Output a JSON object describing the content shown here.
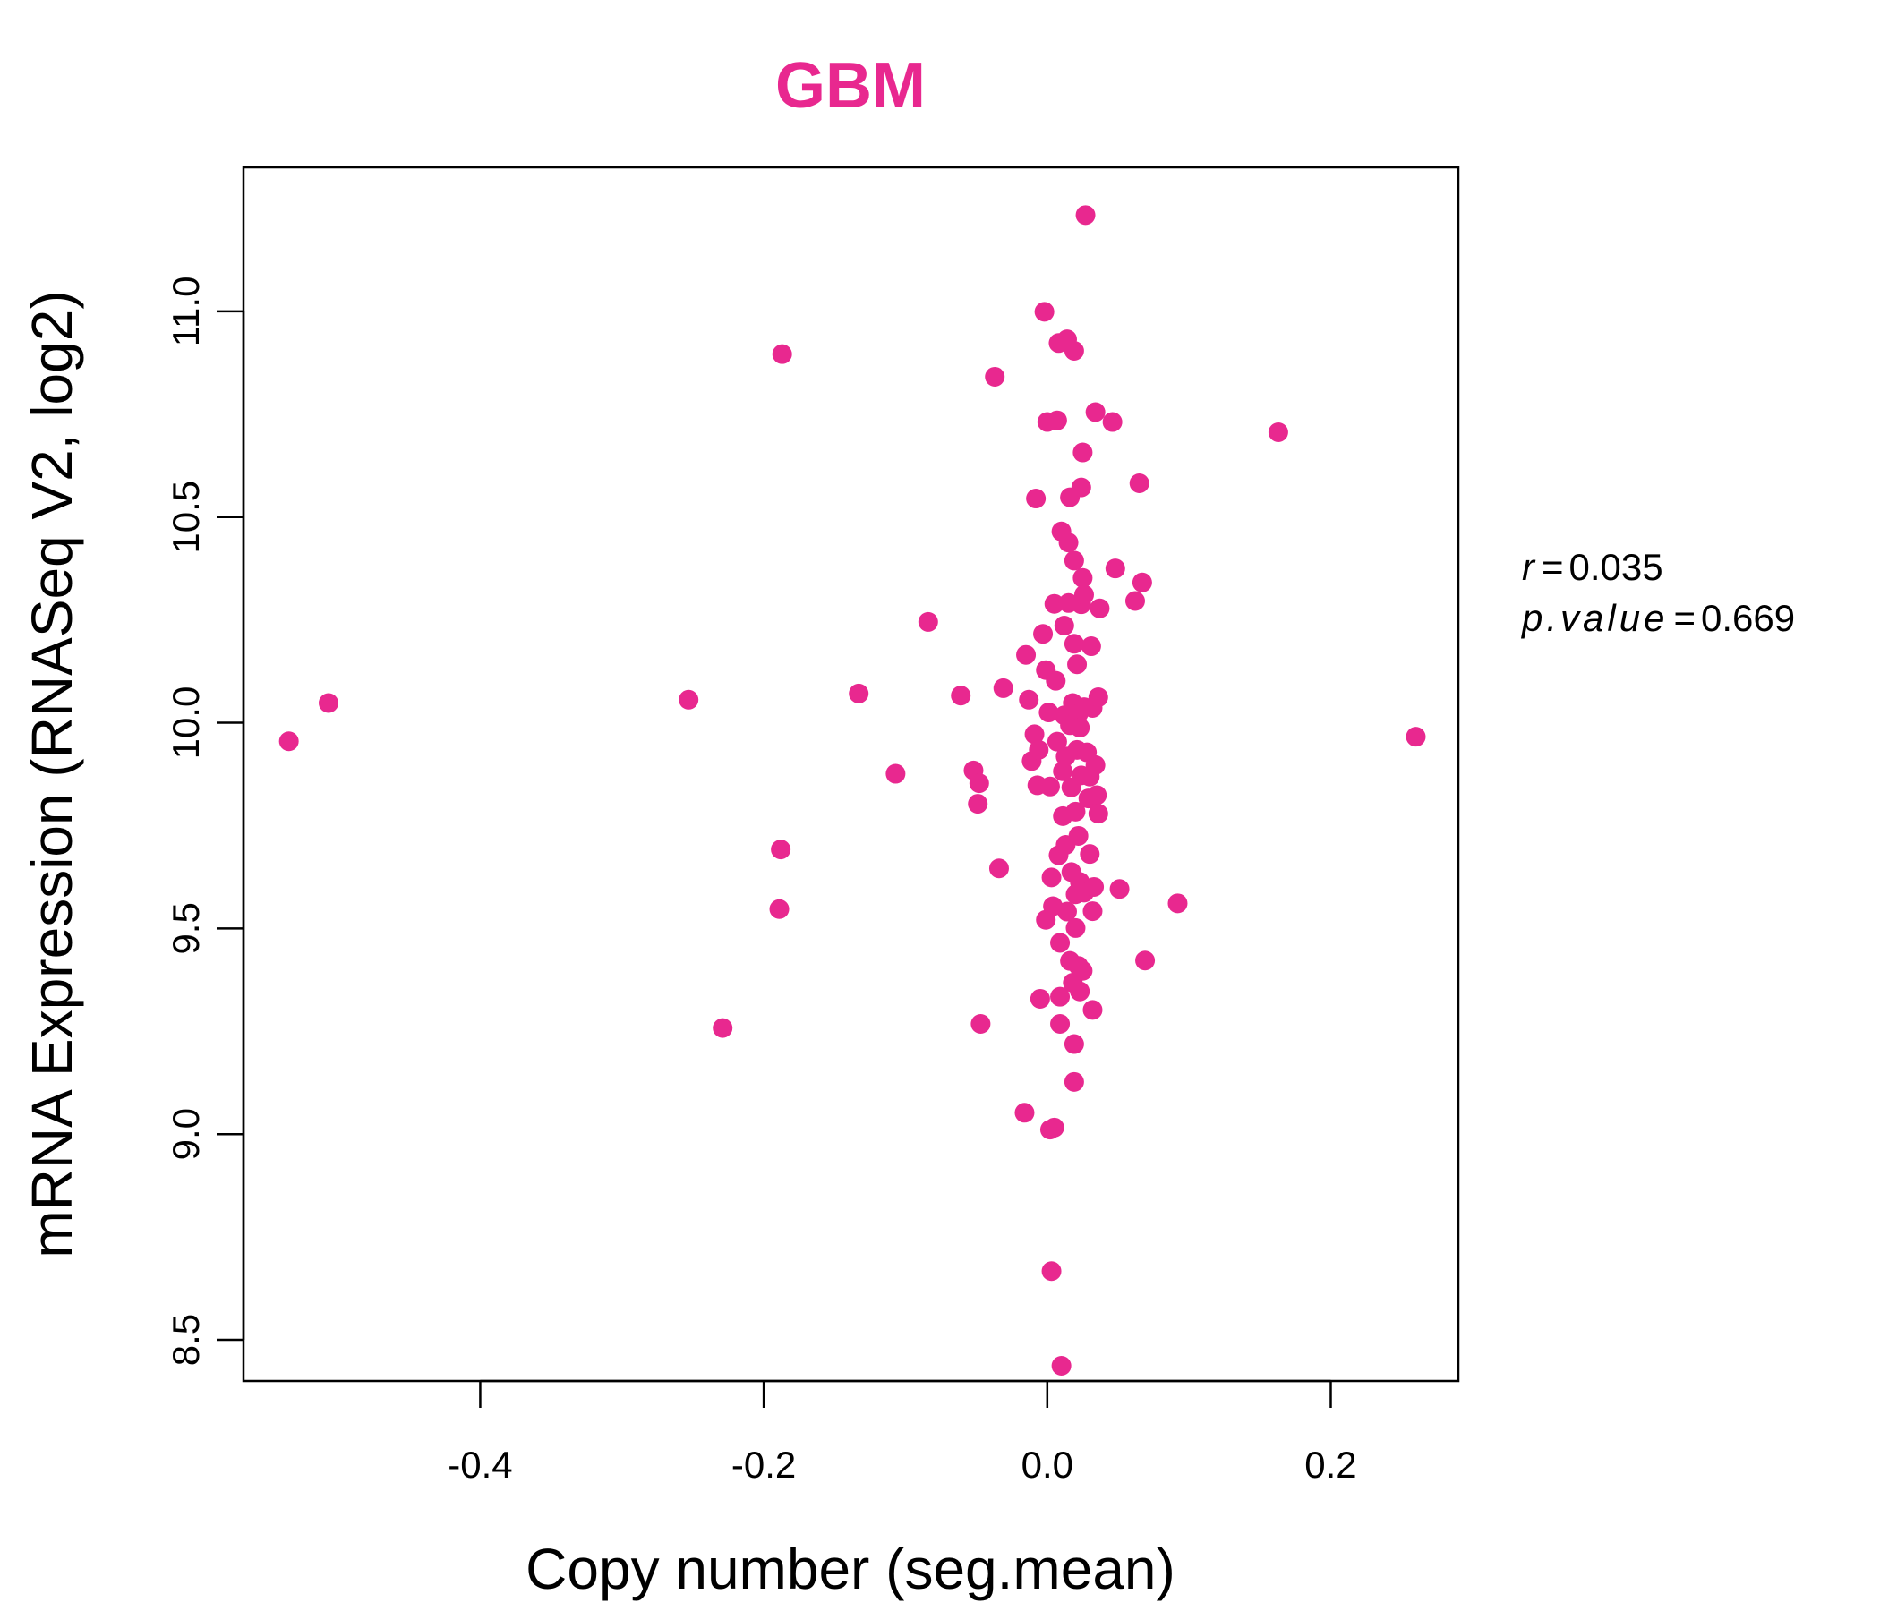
{
  "colors": {
    "accent": "#e8288f",
    "axis": "#000000"
  },
  "stats": {
    "r_label": "r",
    "eq": "=",
    "r_value": "0.035",
    "p_label": "p.value",
    "p_value": "0.669"
  },
  "chart_data": {
    "type": "scatter",
    "title": "GBM",
    "xlabel": "Copy number (seg.mean)",
    "ylabel": "mRNA Expression (RNASeq V2, log2)",
    "xlim": [
      -0.567,
      0.29
    ],
    "ylim": [
      8.4,
      11.35
    ],
    "x_ticks": [
      -0.4,
      -0.2,
      0.0,
      0.2
    ],
    "x_tick_labels": [
      "-0.4",
      "-0.2",
      "0.0",
      "0.2"
    ],
    "y_ticks": [
      8.5,
      9.0,
      9.5,
      10.0,
      10.5,
      11.0
    ],
    "y_tick_labels": [
      "8.5",
      "9.0",
      "9.5",
      "10.0",
      "10.5",
      "11.0"
    ],
    "grid": false,
    "points": [
      {
        "x": -0.535,
        "y": 9.955
      },
      {
        "x": -0.507,
        "y": 10.048
      },
      {
        "x": -0.253,
        "y": 10.056
      },
      {
        "x": -0.229,
        "y": 9.258
      },
      {
        "x": -0.187,
        "y": 10.896
      },
      {
        "x": -0.188,
        "y": 9.692
      },
      {
        "x": -0.189,
        "y": 9.547
      },
      {
        "x": -0.133,
        "y": 10.071
      },
      {
        "x": -0.107,
        "y": 9.876
      },
      {
        "x": -0.084,
        "y": 10.245
      },
      {
        "x": -0.061,
        "y": 10.066
      },
      {
        "x": -0.052,
        "y": 9.884
      },
      {
        "x": -0.048,
        "y": 9.853
      },
      {
        "x": -0.049,
        "y": 9.803
      },
      {
        "x": -0.047,
        "y": 9.268
      },
      {
        "x": -0.037,
        "y": 10.841
      },
      {
        "x": -0.034,
        "y": 9.646
      },
      {
        "x": -0.031,
        "y": 10.084
      },
      {
        "x": -0.016,
        "y": 9.052
      },
      {
        "x": -0.015,
        "y": 10.165
      },
      {
        "x": -0.013,
        "y": 10.056
      },
      {
        "x": -0.011,
        "y": 9.907
      },
      {
        "x": -0.009,
        "y": 9.972
      },
      {
        "x": -0.008,
        "y": 10.545
      },
      {
        "x": -0.007,
        "y": 9.848
      },
      {
        "x": -0.006,
        "y": 9.934
      },
      {
        "x": -0.005,
        "y": 9.329
      },
      {
        "x": -0.003,
        "y": 10.216
      },
      {
        "x": -0.002,
        "y": 10.999
      },
      {
        "x": -0.001,
        "y": 10.128
      },
      {
        "x": -0.001,
        "y": 9.521
      },
      {
        "x": 0.0,
        "y": 10.731
      },
      {
        "x": 0.001,
        "y": 10.025
      },
      {
        "x": 0.002,
        "y": 9.845
      },
      {
        "x": 0.003,
        "y": 9.624
      },
      {
        "x": 0.004,
        "y": 9.554
      },
      {
        "x": 0.002,
        "y": 9.011
      },
      {
        "x": 0.003,
        "y": 8.667
      },
      {
        "x": 0.005,
        "y": 9.016
      },
      {
        "x": 0.005,
        "y": 10.289
      },
      {
        "x": 0.006,
        "y": 10.102
      },
      {
        "x": 0.007,
        "y": 9.954
      },
      {
        "x": 0.007,
        "y": 10.735
      },
      {
        "x": 0.008,
        "y": 10.923
      },
      {
        "x": 0.008,
        "y": 9.678
      },
      {
        "x": 0.009,
        "y": 9.465
      },
      {
        "x": 0.009,
        "y": 9.334
      },
      {
        "x": 0.009,
        "y": 9.268
      },
      {
        "x": 0.01,
        "y": 8.437
      },
      {
        "x": 0.01,
        "y": 10.465
      },
      {
        "x": 0.011,
        "y": 9.882
      },
      {
        "x": 0.011,
        "y": 9.773
      },
      {
        "x": 0.012,
        "y": 10.018
      },
      {
        "x": 0.012,
        "y": 10.236
      },
      {
        "x": 0.013,
        "y": 9.918
      },
      {
        "x": 0.013,
        "y": 9.703
      },
      {
        "x": 0.014,
        "y": 9.541
      },
      {
        "x": 0.014,
        "y": 10.932
      },
      {
        "x": 0.015,
        "y": 10.291
      },
      {
        "x": 0.015,
        "y": 10.438
      },
      {
        "x": 0.016,
        "y": 10.548
      },
      {
        "x": 0.016,
        "y": 9.994
      },
      {
        "x": 0.016,
        "y": 9.421
      },
      {
        "x": 0.017,
        "y": 9.843
      },
      {
        "x": 0.017,
        "y": 9.637
      },
      {
        "x": 0.018,
        "y": 10.048
      },
      {
        "x": 0.018,
        "y": 9.368
      },
      {
        "x": 0.019,
        "y": 10.394
      },
      {
        "x": 0.019,
        "y": 10.904
      },
      {
        "x": 0.019,
        "y": 10.192
      },
      {
        "x": 0.019,
        "y": 9.219
      },
      {
        "x": 0.019,
        "y": 9.127
      },
      {
        "x": 0.02,
        "y": 9.583
      },
      {
        "x": 0.02,
        "y": 9.784
      },
      {
        "x": 0.02,
        "y": 9.501
      },
      {
        "x": 0.021,
        "y": 10.142
      },
      {
        "x": 0.021,
        "y": 9.934
      },
      {
        "x": 0.022,
        "y": 10.022
      },
      {
        "x": 0.022,
        "y": 9.725
      },
      {
        "x": 0.022,
        "y": 9.409
      },
      {
        "x": 0.023,
        "y": 9.988
      },
      {
        "x": 0.023,
        "y": 9.613
      },
      {
        "x": 0.023,
        "y": 9.347
      },
      {
        "x": 0.024,
        "y": 10.572
      },
      {
        "x": 0.024,
        "y": 10.288
      },
      {
        "x": 0.024,
        "y": 9.872
      },
      {
        "x": 0.025,
        "y": 10.657
      },
      {
        "x": 0.025,
        "y": 10.352
      },
      {
        "x": 0.025,
        "y": 9.397
      },
      {
        "x": 0.026,
        "y": 10.311
      },
      {
        "x": 0.026,
        "y": 10.038
      },
      {
        "x": 0.026,
        "y": 9.587
      },
      {
        "x": 0.027,
        "y": 11.234
      },
      {
        "x": 0.028,
        "y": 9.928
      },
      {
        "x": 0.029,
        "y": 9.816
      },
      {
        "x": 0.03,
        "y": 9.869
      },
      {
        "x": 0.03,
        "y": 9.681
      },
      {
        "x": 0.031,
        "y": 10.186
      },
      {
        "x": 0.032,
        "y": 10.036
      },
      {
        "x": 0.032,
        "y": 9.542
      },
      {
        "x": 0.032,
        "y": 9.302
      },
      {
        "x": 0.033,
        "y": 9.601
      },
      {
        "x": 0.034,
        "y": 9.897
      },
      {
        "x": 0.034,
        "y": 10.755
      },
      {
        "x": 0.035,
        "y": 9.824
      },
      {
        "x": 0.036,
        "y": 9.779
      },
      {
        "x": 0.036,
        "y": 10.062
      },
      {
        "x": 0.037,
        "y": 10.278
      },
      {
        "x": 0.046,
        "y": 10.731
      },
      {
        "x": 0.048,
        "y": 10.375
      },
      {
        "x": 0.051,
        "y": 9.596
      },
      {
        "x": 0.062,
        "y": 10.296
      },
      {
        "x": 0.065,
        "y": 10.582
      },
      {
        "x": 0.067,
        "y": 10.341
      },
      {
        "x": 0.069,
        "y": 9.422
      },
      {
        "x": 0.092,
        "y": 9.561
      },
      {
        "x": 0.163,
        "y": 10.706
      },
      {
        "x": 0.26,
        "y": 9.966
      }
    ]
  }
}
